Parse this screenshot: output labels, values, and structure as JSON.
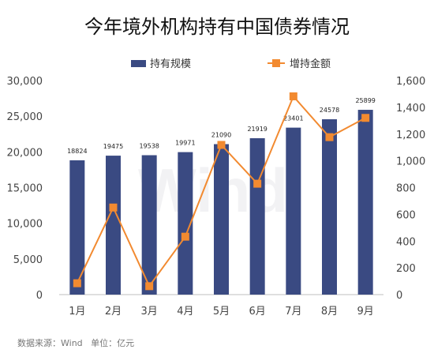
{
  "colors": {
    "bar": "#3A4A82",
    "line": "#F28A30",
    "grid": "#DDDDDD",
    "watermark": "#F2F2F4"
  },
  "watermark_text": "Wind",
  "footnote": "数据来源：Wind   单位：亿元",
  "chart_data": {
    "type": "bar",
    "title": "今年境外机构持有中国债券情况",
    "categories": [
      "1月",
      "2月",
      "3月",
      "4月",
      "5月",
      "6月",
      "7月",
      "8月",
      "9月"
    ],
    "series": [
      {
        "name": "持有规模",
        "type": "bar",
        "axis": "left",
        "values": [
          18824,
          19475,
          19538,
          19971,
          21090,
          21919,
          23401,
          24578,
          25899
        ],
        "data_labels": [
          "18824",
          "19475",
          "19538",
          "19971",
          "21090",
          "21919",
          "23401",
          "24578",
          "25899"
        ]
      },
      {
        "name": "增持金额",
        "type": "line",
        "axis": "right",
        "values": [
          85,
          651,
          63,
          433,
          1119,
          829,
          1482,
          1177,
          1321
        ]
      }
    ],
    "y_left": {
      "ylim": [
        0,
        30000
      ],
      "ticks": [
        0,
        5000,
        10000,
        15000,
        20000,
        25000,
        30000
      ],
      "tick_labels": [
        "0",
        "5,000",
        "10,000",
        "15,000",
        "20,000",
        "25,000",
        "30,000"
      ]
    },
    "y_right": {
      "ylim": [
        0,
        1600
      ],
      "ticks": [
        0,
        200,
        400,
        600,
        800,
        1000,
        1200,
        1400,
        1600
      ],
      "tick_labels": [
        "0",
        "200",
        "400",
        "600",
        "800",
        "1,000",
        "1,200",
        "1,400",
        "1,600"
      ]
    },
    "grid": false,
    "legend_position": "top"
  }
}
